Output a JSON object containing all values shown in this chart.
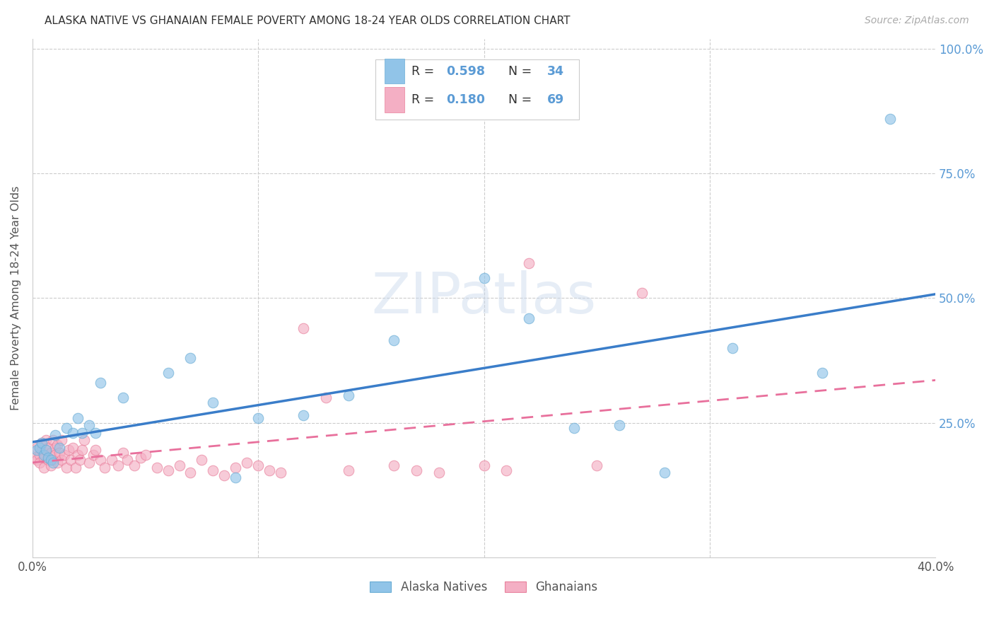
{
  "title": "ALASKA NATIVE VS GHANAIAN FEMALE POVERTY AMONG 18-24 YEAR OLDS CORRELATION CHART",
  "source": "Source: ZipAtlas.com",
  "ylabel": "Female Poverty Among 18-24 Year Olds",
  "xlim": [
    0.0,
    0.4
  ],
  "ylim": [
    -0.02,
    1.02
  ],
  "alaska_color": "#91c4e8",
  "alaska_edge_color": "#6aadd5",
  "ghana_color": "#f4afc4",
  "ghana_edge_color": "#e8809c",
  "alaska_line_color": "#3a7dc9",
  "ghana_line_color": "#e8709c",
  "alaska_R": 0.598,
  "alaska_N": 34,
  "ghana_R": 0.18,
  "ghana_N": 69,
  "watermark": "ZIPatlas",
  "alaska_x": [
    0.002,
    0.003,
    0.004,
    0.005,
    0.006,
    0.007,
    0.008,
    0.009,
    0.01,
    0.012,
    0.015,
    0.018,
    0.02,
    0.022,
    0.025,
    0.028,
    0.03,
    0.04,
    0.06,
    0.07,
    0.08,
    0.09,
    0.1,
    0.12,
    0.14,
    0.16,
    0.2,
    0.22,
    0.24,
    0.26,
    0.28,
    0.31,
    0.35,
    0.38
  ],
  "alaska_y": [
    0.195,
    0.2,
    0.21,
    0.185,
    0.195,
    0.18,
    0.175,
    0.17,
    0.225,
    0.2,
    0.24,
    0.23,
    0.26,
    0.23,
    0.245,
    0.23,
    0.33,
    0.3,
    0.35,
    0.38,
    0.29,
    0.14,
    0.26,
    0.265,
    0.305,
    0.415,
    0.54,
    0.46,
    0.24,
    0.245,
    0.15,
    0.4,
    0.35,
    0.86
  ],
  "ghana_x": [
    0.001,
    0.002,
    0.002,
    0.003,
    0.003,
    0.004,
    0.004,
    0.005,
    0.005,
    0.006,
    0.006,
    0.007,
    0.007,
    0.008,
    0.008,
    0.009,
    0.009,
    0.01,
    0.01,
    0.011,
    0.011,
    0.012,
    0.013,
    0.013,
    0.014,
    0.015,
    0.016,
    0.017,
    0.018,
    0.019,
    0.02,
    0.021,
    0.022,
    0.023,
    0.025,
    0.027,
    0.028,
    0.03,
    0.032,
    0.035,
    0.038,
    0.04,
    0.042,
    0.045,
    0.048,
    0.05,
    0.055,
    0.06,
    0.065,
    0.07,
    0.075,
    0.08,
    0.085,
    0.09,
    0.095,
    0.1,
    0.105,
    0.11,
    0.12,
    0.13,
    0.14,
    0.16,
    0.17,
    0.18,
    0.2,
    0.21,
    0.22,
    0.25,
    0.27
  ],
  "ghana_y": [
    0.18,
    0.175,
    0.2,
    0.185,
    0.17,
    0.195,
    0.21,
    0.18,
    0.16,
    0.195,
    0.215,
    0.175,
    0.2,
    0.165,
    0.19,
    0.215,
    0.175,
    0.2,
    0.185,
    0.17,
    0.205,
    0.19,
    0.175,
    0.215,
    0.185,
    0.16,
    0.195,
    0.175,
    0.2,
    0.16,
    0.185,
    0.175,
    0.195,
    0.215,
    0.17,
    0.185,
    0.195,
    0.175,
    0.16,
    0.175,
    0.165,
    0.19,
    0.175,
    0.165,
    0.18,
    0.185,
    0.16,
    0.155,
    0.165,
    0.15,
    0.175,
    0.155,
    0.145,
    0.16,
    0.17,
    0.165,
    0.155,
    0.15,
    0.44,
    0.3,
    0.155,
    0.165,
    0.155,
    0.15,
    0.165,
    0.155,
    0.57,
    0.165,
    0.51
  ]
}
